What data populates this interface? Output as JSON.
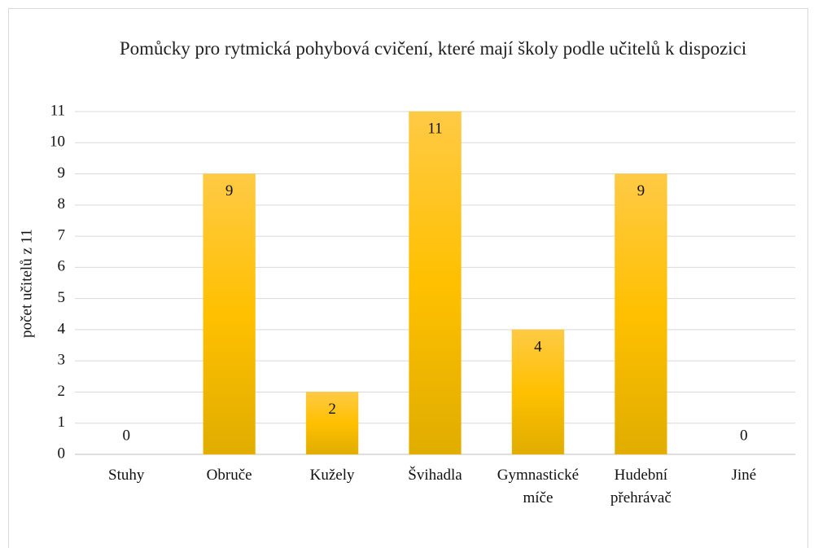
{
  "chart_data": {
    "type": "bar",
    "title": "Pomůcky pro rytmická pohybová cvičení, které mají školy podle učitelů k dispozici",
    "y_label": "počet učitelů z 11",
    "categories": [
      "Stuhy",
      "Obruče",
      "Kužely",
      "Švihadla",
      "Gymnastické míče",
      "Hudební přehrávač",
      "Jiné"
    ],
    "values": [
      0,
      9,
      2,
      11,
      4,
      9,
      0
    ],
    "color": "#ffc000",
    "ylim": [
      0,
      11
    ],
    "yticks": [
      0,
      1,
      2,
      3,
      4,
      5,
      6,
      7,
      8,
      9,
      10,
      11
    ],
    "grid": true
  }
}
